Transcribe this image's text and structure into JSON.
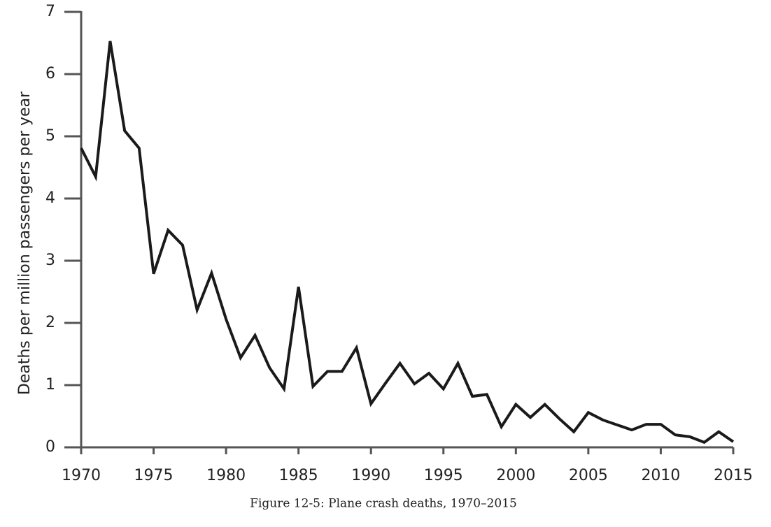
{
  "chart_data": {
    "type": "line",
    "caption": "Figure 12-5: Plane crash deaths, 1970–2015",
    "y_label": "Deaths per million passengers per year",
    "x": [
      1970,
      1971,
      1972,
      1973,
      1974,
      1975,
      1976,
      1977,
      1978,
      1979,
      1980,
      1981,
      1982,
      1983,
      1984,
      1985,
      1986,
      1987,
      1988,
      1989,
      1990,
      1991,
      1992,
      1993,
      1994,
      1995,
      1996,
      1997,
      1998,
      1999,
      2000,
      2001,
      2002,
      2003,
      2004,
      2005,
      2006,
      2007,
      2008,
      2009,
      2010,
      2011,
      2012,
      2013,
      2014,
      2015
    ],
    "values": [
      4.81,
      4.35,
      6.53,
      5.09,
      4.81,
      2.79,
      3.49,
      3.25,
      2.21,
      2.8,
      2.06,
      1.44,
      1.8,
      1.28,
      0.94,
      2.58,
      0.98,
      1.22,
      1.22,
      1.6,
      0.7,
      1.03,
      1.35,
      1.02,
      1.19,
      0.94,
      1.35,
      0.82,
      0.85,
      0.33,
      0.69,
      0.48,
      0.69,
      0.46,
      0.25,
      0.56,
      0.44,
      0.36,
      0.28,
      0.37,
      0.37,
      0.2,
      0.17,
      0.08,
      0.25,
      0.09
    ],
    "color": "#1a1a1a",
    "xlim": [
      1970,
      2015
    ],
    "xticks": [
      1970,
      1975,
      1980,
      1985,
      1990,
      1995,
      2000,
      2005,
      2010,
      2015
    ],
    "ylim": [
      0,
      7
    ],
    "yticks": [
      0,
      1,
      2,
      3,
      4,
      5,
      6,
      7
    ]
  }
}
